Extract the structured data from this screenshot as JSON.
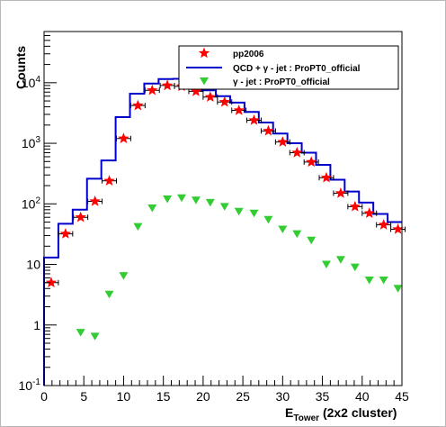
{
  "chart_data": {
    "type": "scatter",
    "ylabel": "Counts",
    "xlabel_main": "E",
    "xlabel_sub": "Tower",
    "xlabel_rest": " (2x2 cluster)",
    "x_range": [
      0,
      45
    ],
    "y_range": [
      0.1,
      70000
    ],
    "y_scale": "log",
    "grid": false,
    "legend_position": "top-right",
    "x_ticks": [
      0,
      5,
      10,
      15,
      20,
      25,
      30,
      35,
      40,
      45
    ],
    "y_ticks": [
      {
        "value": 0.1,
        "base": "10",
        "exp": "-1"
      },
      {
        "value": 1,
        "label": "1"
      },
      {
        "value": 10,
        "label": "10"
      },
      {
        "value": 100,
        "base": "10",
        "exp": "2"
      },
      {
        "value": 1000,
        "base": "10",
        "exp": "3"
      },
      {
        "value": 10000,
        "base": "10",
        "exp": "4"
      }
    ],
    "series": [
      {
        "name": "pp2006",
        "kind": "points-with-errors",
        "marker": "star",
        "color": "#ff0000",
        "x": [
          0.9,
          2.7,
          4.6,
          6.4,
          8.2,
          10.0,
          11.8,
          13.6,
          15.5,
          17.3,
          19.1,
          20.9,
          22.7,
          24.5,
          26.4,
          28.2,
          30.0,
          31.8,
          33.6,
          35.5,
          37.3,
          39.1,
          40.9,
          42.7,
          44.5
        ],
        "y": [
          5,
          32,
          60,
          110,
          240,
          1200,
          4200,
          7500,
          9000,
          8700,
          7200,
          5800,
          4800,
          3500,
          2400,
          1600,
          1050,
          700,
          490,
          270,
          150,
          90,
          70,
          45,
          38
        ],
        "x_err": 0.9
      },
      {
        "name": "QCD + γ - jet : ProPT0_official",
        "kind": "histogram",
        "color": "#0000cc",
        "bin_edges": [
          0,
          1.8,
          3.6,
          5.4,
          7.2,
          9.0,
          10.8,
          12.6,
          14.4,
          16.2,
          18.0,
          19.8,
          21.6,
          23.4,
          25.2,
          27.0,
          28.8,
          30.6,
          32.4,
          34.2,
          36.0,
          37.8,
          39.6,
          41.4,
          43.2,
          45.0
        ],
        "values": [
          13,
          47,
          80,
          260,
          520,
          2700,
          6600,
          9700,
          11500,
          11600,
          9600,
          7500,
          6000,
          4700,
          3300,
          2200,
          1450,
          1000,
          700,
          440,
          250,
          160,
          105,
          68,
          50
        ]
      },
      {
        "name": "γ - jet : ProPT0_official",
        "kind": "points",
        "marker": "triangle-down",
        "color": "#33cc33",
        "x": [
          4.6,
          6.4,
          8.2,
          10.0,
          11.8,
          13.6,
          15.5,
          17.3,
          19.1,
          20.9,
          22.7,
          24.5,
          26.4,
          28.2,
          30.0,
          31.8,
          33.6,
          35.5,
          37.3,
          39.1,
          40.9,
          42.7,
          44.5
        ],
        "y": [
          0.75,
          0.65,
          3.2,
          6.5,
          42,
          85,
          120,
          125,
          115,
          105,
          90,
          75,
          70,
          55,
          38,
          32,
          25,
          10,
          12,
          9,
          5.5,
          5.5,
          4
        ]
      }
    ]
  }
}
